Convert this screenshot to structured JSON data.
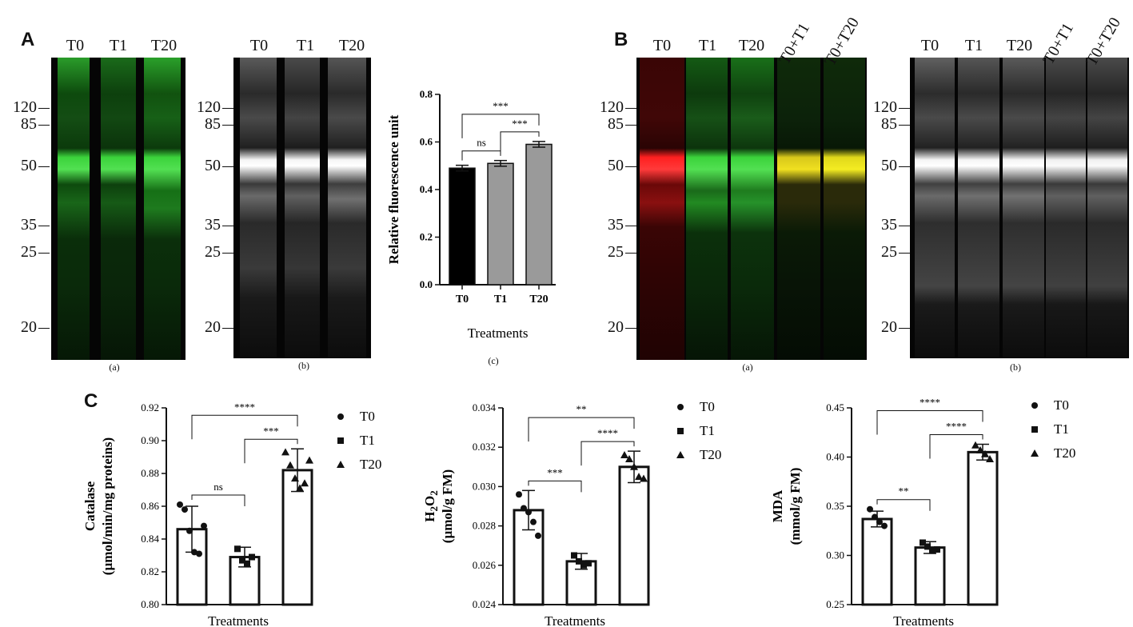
{
  "panels": {
    "A": {
      "letter": "A",
      "gel_a": {
        "lanes": [
          "T0",
          "T1",
          "T20"
        ],
        "sublabel": "(a)"
      },
      "gel_b": {
        "lanes": [
          "T0",
          "T1",
          "T20"
        ],
        "sublabel": "(b)"
      },
      "markers": [
        "120",
        "85",
        "50",
        "35",
        "25",
        "20"
      ],
      "chart_sublabel": "(c)"
    },
    "B": {
      "letter": "B",
      "gel_a": {
        "lanes": [
          "T0",
          "T1",
          "T20",
          "T0+T1",
          "T0+T20"
        ],
        "sublabel": "(a)",
        "lane_colors": [
          "#e01818",
          "#2ec22e",
          "#2ec22e",
          "#c7d21a",
          "#d9e21a"
        ]
      },
      "gel_b": {
        "lanes": [
          "T0",
          "T1",
          "T20",
          "T0+T1",
          "T0+T20"
        ],
        "sublabel": "(b)"
      },
      "markers": [
        "120",
        "85",
        "50",
        "35",
        "25",
        "20"
      ]
    },
    "C": {
      "letter": "C"
    }
  },
  "chart_data": [
    {
      "type": "bar",
      "categories": [
        "T0",
        "T1",
        "T20"
      ],
      "values": [
        0.49,
        0.51,
        0.59
      ],
      "errors": [
        0.012,
        0.012,
        0.012
      ],
      "bar_colors": [
        "#000000",
        "#9a9a9a",
        "#9a9a9a"
      ],
      "xlabel": "Treatments",
      "ylabel": "Relative fluorescence unit",
      "ylim": [
        0,
        0.8
      ],
      "yticks": [
        "0.0",
        "0.2",
        "0.4",
        "0.6",
        "0.8"
      ],
      "significance": [
        {
          "from": 0,
          "to": 1,
          "label": "ns"
        },
        {
          "from": 1,
          "to": 2,
          "label": "***"
        },
        {
          "from": 0,
          "to": 2,
          "label": "***"
        }
      ]
    },
    {
      "type": "bar",
      "categories": [
        "T0",
        "T1",
        "T20"
      ],
      "values": [
        0.846,
        0.829,
        0.882
      ],
      "errors": [
        0.014,
        0.006,
        0.013
      ],
      "points": [
        [
          0.861,
          0.858,
          0.845,
          0.832,
          0.831,
          0.848
        ],
        [
          0.834,
          0.827,
          0.825,
          0.829
        ],
        [
          0.893,
          0.885,
          0.877,
          0.871,
          0.874,
          0.888
        ]
      ],
      "xlabel": "Treatments",
      "ylabel": "Catalase",
      "ylabel2": "(µmol/min/mg proteins)",
      "ylim": [
        0.8,
        0.92
      ],
      "yticks": [
        "0.80",
        "0.82",
        "0.84",
        "0.86",
        "0.88",
        "0.90",
        "0.92"
      ],
      "significance": [
        {
          "from": 0,
          "to": 1,
          "label": "ns"
        },
        {
          "from": 1,
          "to": 2,
          "label": "***"
        },
        {
          "from": 0,
          "to": 2,
          "label": "****"
        }
      ],
      "legend": [
        "T0",
        "T1",
        "T20"
      ]
    },
    {
      "type": "bar",
      "categories": [
        "T0",
        "T1",
        "T20"
      ],
      "values": [
        0.0288,
        0.0262,
        0.031
      ],
      "errors": [
        0.001,
        0.0004,
        0.0008
      ],
      "points": [
        [
          0.0296,
          0.0289,
          0.0287,
          0.0282,
          0.0275
        ],
        [
          0.0265,
          0.0262,
          0.026,
          0.0261
        ],
        [
          0.0316,
          0.0314,
          0.031,
          0.0305,
          0.0304
        ]
      ],
      "xlabel": "Treatments",
      "ylabel": "H2O2",
      "ylabel2": "(µmol/g FM)",
      "ylim": [
        0.024,
        0.034
      ],
      "yticks": [
        "0.024",
        "0.026",
        "0.028",
        "0.030",
        "0.032",
        "0.034"
      ],
      "significance": [
        {
          "from": 0,
          "to": 1,
          "label": "***"
        },
        {
          "from": 1,
          "to": 2,
          "label": "****"
        },
        {
          "from": 0,
          "to": 2,
          "label": "**"
        }
      ],
      "legend": [
        "T0",
        "T1",
        "T20"
      ]
    },
    {
      "type": "bar",
      "categories": [
        "T0",
        "T1",
        "T20"
      ],
      "values": [
        0.337,
        0.308,
        0.405
      ],
      "errors": [
        0.008,
        0.006,
        0.008
      ],
      "points": [
        [
          0.347,
          0.339,
          0.334,
          0.33
        ],
        [
          0.313,
          0.309,
          0.305,
          0.306
        ],
        [
          0.412,
          0.407,
          0.403,
          0.398
        ]
      ],
      "xlabel": "Treatments",
      "ylabel": "MDA",
      "ylabel2": "(mmol/g FM)",
      "ylim": [
        0.25,
        0.45
      ],
      "yticks": [
        "0.25",
        "0.30",
        "0.35",
        "0.40",
        "0.45"
      ],
      "significance": [
        {
          "from": 0,
          "to": 1,
          "label": "**"
        },
        {
          "from": 1,
          "to": 2,
          "label": "****"
        },
        {
          "from": 0,
          "to": 2,
          "label": "****"
        }
      ],
      "legend": [
        "T0",
        "T1",
        "T20"
      ]
    }
  ]
}
